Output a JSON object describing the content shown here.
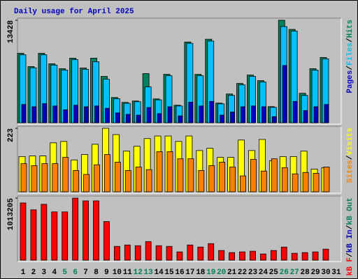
{
  "chart_data": {
    "type": "bar",
    "title": "Daily usage for April 2025",
    "categories": [
      1,
      2,
      3,
      4,
      5,
      6,
      7,
      8,
      9,
      10,
      11,
      12,
      13,
      14,
      15,
      16,
      17,
      18,
      19,
      20,
      21,
      22,
      23,
      24,
      25,
      26,
      27,
      28,
      29,
      30,
      31
    ],
    "weekend_days": [
      5,
      6,
      12,
      13,
      19,
      20,
      26,
      27
    ],
    "weekday_color": "#000000",
    "weekend_color": "#00805c",
    "separator": "/",
    "panels": [
      {
        "ylim": [
          0,
          13428
        ],
        "yticks": [
          13428
        ],
        "legend_order": [
          2,
          1,
          0
        ],
        "series": [
          {
            "name": "Hits",
            "color": "#00805c",
            "values": [
              9105,
              7358,
              9105,
              7726,
              7082,
              8461,
              7174,
              8461,
              6070,
              3311,
              2667,
              2851,
              6438,
              3127,
              6346,
              2299,
              10577,
              6346,
              10945,
              2575,
              3771,
              5150,
              6254,
              5518,
              2115,
              13428,
              12232,
              3863,
              7082,
              8553,
              null
            ]
          },
          {
            "name": "Files",
            "color": "#00c0ff",
            "values": [
              8900,
              7200,
              8900,
              7550,
              6900,
              8280,
              7000,
              8000,
              5700,
              3150,
              2550,
              2760,
              4690,
              3000,
              6160,
              2200,
              10400,
              6160,
              10700,
              2480,
              3580,
              4960,
              6070,
              5330,
              2020,
              12600,
              12000,
              3580,
              6900,
              8370,
              null
            ]
          },
          {
            "name": "Pages",
            "color": "#0000c0",
            "values": [
              2400,
              2100,
              2500,
              2200,
              1700,
              2300,
              2100,
              2200,
              1900,
              1300,
              1100,
              1000,
              2000,
              1200,
              2100,
              900,
              2700,
              2200,
              2800,
              1000,
              1400,
              2100,
              2200,
              2100,
              800,
              7500,
              2800,
              1600,
              2100,
              2400,
              null
            ]
          }
        ]
      },
      {
        "ylim": [
          0,
          223
        ],
        "yticks": [
          223
        ],
        "legend_order": [
          1,
          0
        ],
        "series": [
          {
            "name": "Visits",
            "color": "#ffff00",
            "values": [
              124,
              126,
              126,
              172,
              177,
              112,
              131,
              167,
              223,
              201,
              143,
              160,
              187,
              196,
              196,
              177,
              196,
              145,
              153,
              121,
              121,
              182,
              145,
              184,
              109,
              124,
              124,
              143,
              80,
              85,
              null
            ]
          },
          {
            "name": "Sites",
            "color": "#ff8000",
            "values": [
              99,
              92,
              99,
              99,
              121,
              75,
              61,
              95,
              131,
              104,
              75,
              87,
              78,
              141,
              141,
              116,
              116,
              75,
              92,
              104,
              87,
              56,
              114,
              73,
              116,
              85,
              63,
              68,
              65,
              87,
              null
            ]
          }
        ]
      },
      {
        "ylim": [
          0,
          1013205
        ],
        "yticks": [
          1013205
        ],
        "legend_order": [
          0,
          1,
          2
        ],
        "series": [
          {
            "name": "kB F",
            "color": "#ff0000",
            "values": [
              934400,
              821800,
              911900,
              788000,
              788000,
              1013205,
              968100,
              968100,
              630400,
              225200,
              247700,
              236400,
              304000,
              236400,
              225200,
              135100,
              247700,
              213900,
              270200,
              157600,
              123800,
              135100,
              146300,
              101300,
              157600,
              213900,
              112600,
              123800,
              135100,
              180100,
              null
            ]
          },
          {
            "name": "kB In",
            "color": "#0000c0"
          },
          {
            "name": "kB Out",
            "color": "#00805c"
          }
        ]
      }
    ]
  }
}
